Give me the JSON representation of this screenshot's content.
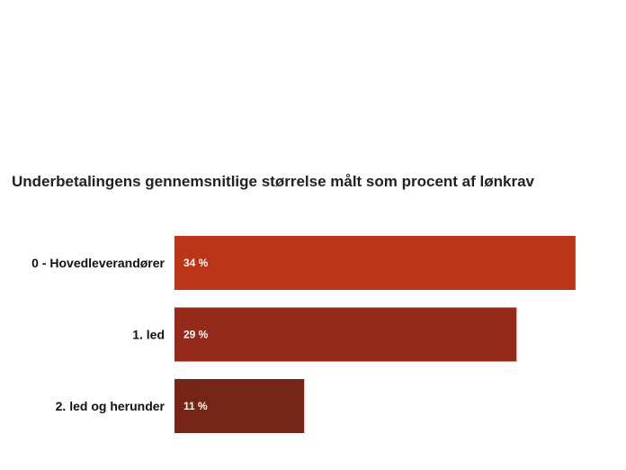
{
  "chart_data": {
    "type": "bar",
    "orientation": "horizontal",
    "title": "Underbetalingens gennemsnitlige størrelse målt som procent af lønkrav",
    "categories": [
      "0 - Hovedleverandører",
      "1. led",
      "2. led og herunder"
    ],
    "values": [
      34,
      29,
      11
    ],
    "value_labels": [
      "34 %",
      "29 %",
      "11 %"
    ],
    "colors": [
      "#bb3518",
      "#952a1b",
      "#762415"
    ],
    "xlim": [
      0,
      35
    ],
    "grid": false,
    "legend": "none"
  }
}
